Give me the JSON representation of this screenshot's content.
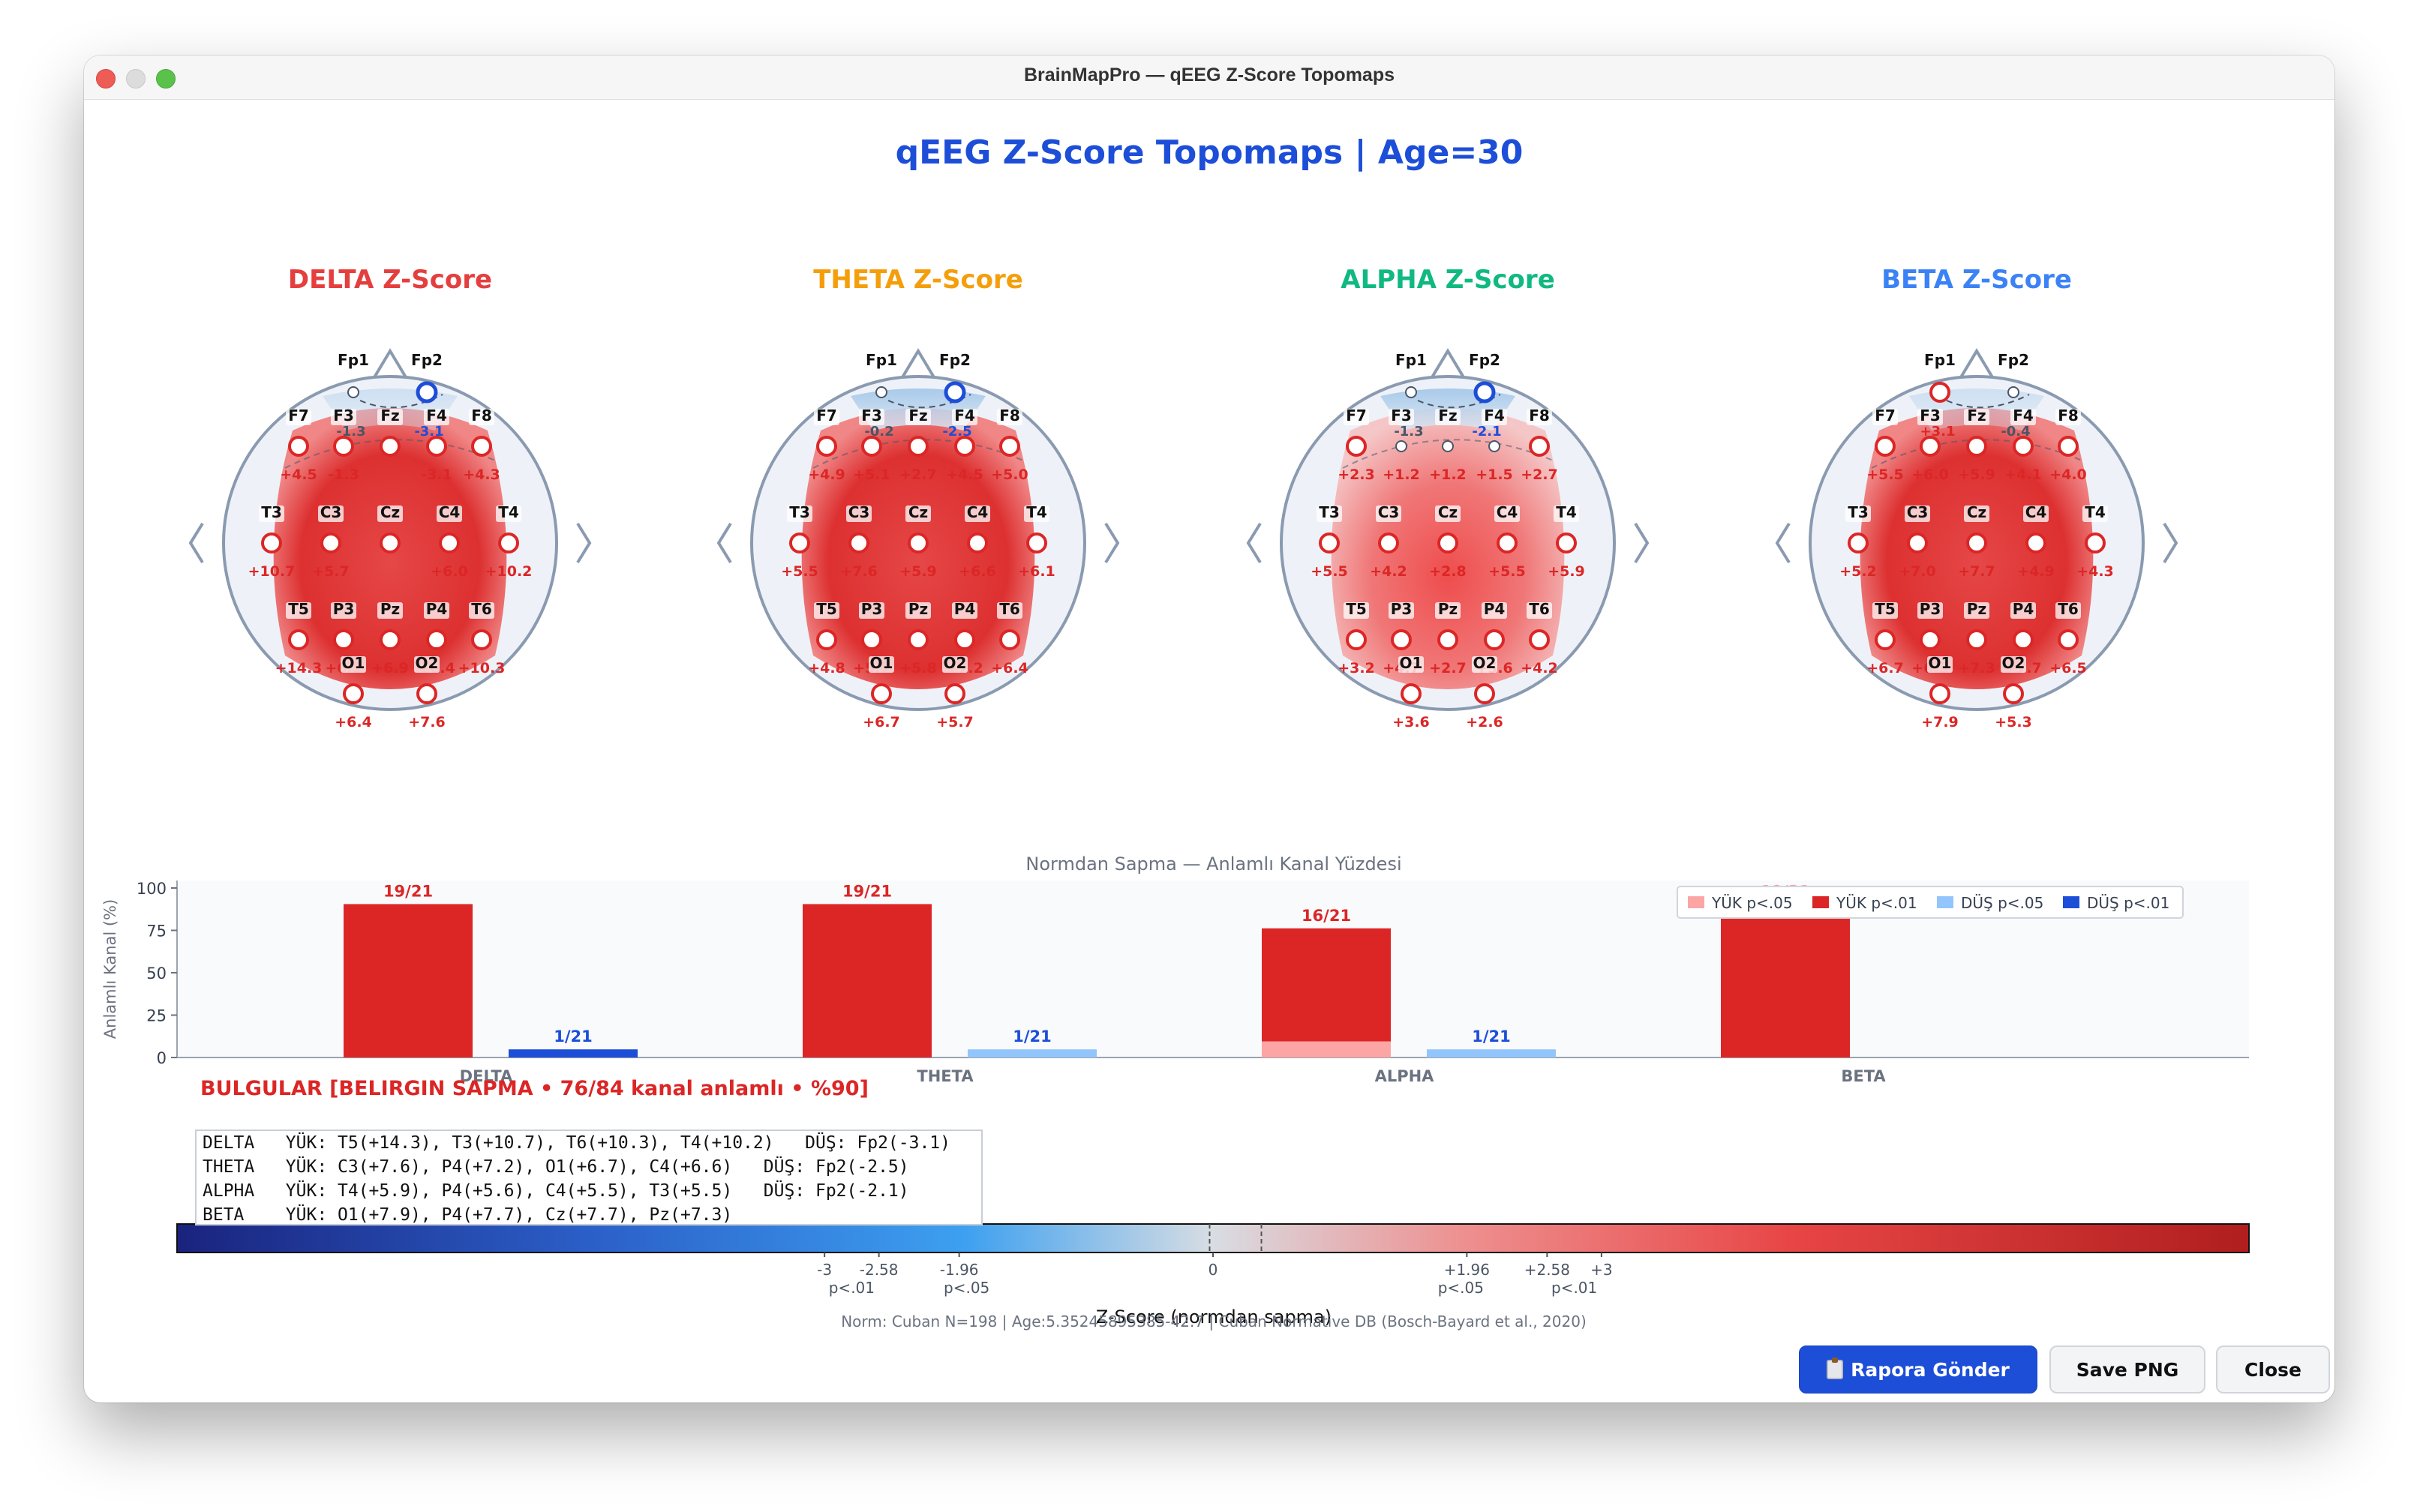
{
  "window": {
    "title": "BrainMapPro — qEEG Z-Score Topomaps"
  },
  "main_title": "qEEG Z-Score Topomaps  |  Age=30",
  "colors": {
    "accent": "#1d4ed8",
    "high": "#dc2626",
    "low": "#1d4ed8",
    "delta": "#e53e3e",
    "theta": "#f59e0b",
    "alpha": "#10b981",
    "beta": "#3b82f6"
  },
  "nav": {
    "prev_icon": "chevron-left-icon",
    "next_icon": "chevron-right-icon"
  },
  "electrodes": [
    "Fp1",
    "Fp2",
    "F7",
    "F3",
    "Fz",
    "F4",
    "F8",
    "T3",
    "C3",
    "Cz",
    "C4",
    "T4",
    "T5",
    "P3",
    "Pz",
    "P4",
    "T6",
    "O1",
    "O2"
  ],
  "maps": [
    {
      "title": "DELTA Z-Score",
      "color": "#e53e3e",
      "values": {
        "F7": "+4.5",
        "F8": "+4.3",
        "F3": "-1.3",
        "F4": "-3.1",
        "T3": "+10.7",
        "C3": "+5.7",
        "C4": "+6.0",
        "T4": "+10.2",
        "T5": "+14.3",
        "P3": "+6.1",
        "Pz": "+6.9",
        "P4": "+6.4",
        "T6": "+10.3",
        "O1": "+6.4",
        "O2": "+7.6"
      }
    },
    {
      "title": "THETA Z-Score",
      "color": "#f59e0b",
      "values": {
        "F7": "+4.9",
        "F3": "+5.1",
        "Fz": "+2.7",
        "F4": "+4.5",
        "F8": "+5.0",
        "T3": "+5.5",
        "C3": "+7.6",
        "Cz": "+5.9",
        "C4": "+6.6",
        "T4": "+6.1",
        "T5": "+4.8",
        "P3": "+5.7",
        "Pz": "+5.8",
        "P4": "+7.2",
        "T6": "+6.4",
        "O1": "+6.7",
        "O2": "+5.7",
        "F3n": "-0.2",
        "F4n": "-2.5"
      }
    },
    {
      "title": "ALPHA Z-Score",
      "color": "#10b981",
      "values": {
        "F7": "+2.3",
        "F3": "+1.2",
        "Fz": "+1.2",
        "F4": "+1.5",
        "F8": "+2.7",
        "T3": "+5.5",
        "C3": "+4.2",
        "Cz": "+2.8",
        "C4": "+5.5",
        "T4": "+5.9",
        "T5": "+3.2",
        "P3": "+4.7",
        "Pz": "+2.7",
        "P4": "+5.6",
        "T6": "+4.2",
        "O1": "+3.6",
        "O2": "+2.6",
        "F3n": "-1.3",
        "F4n": "-2.1"
      }
    },
    {
      "title": "BETA Z-Score",
      "color": "#3b82f6",
      "values": {
        "F7": "+5.5",
        "F3": "+6.0",
        "Fz": "+5.9",
        "F4": "+4.1",
        "F8": "+4.0",
        "T3": "+5.2",
        "C3": "+7.0",
        "Cz": "+7.7",
        "C4": "+4.9",
        "T4": "+4.3",
        "T5": "+6.7",
        "P3": "+6.3",
        "Pz": "+7.3",
        "P4": "+7.7",
        "T6": "+6.5",
        "O1": "+7.9",
        "O2": "+5.3",
        "F3n": "+3.1",
        "F4n": "-0.4"
      }
    }
  ],
  "chart_data": {
    "type": "bar",
    "title": "Normdan Sapma — Anlamlı Kanal Yüzdesi",
    "ylabel": "Anlamlı Kanal (%)",
    "xlabel": "",
    "ylim": [
      0,
      100
    ],
    "yticks": [
      "0",
      "25",
      "50",
      "75",
      "100"
    ],
    "categories": [
      "DELTA",
      "THETA",
      "ALPHA",
      "BETA"
    ],
    "series": [
      {
        "name": "YÜK p<.05",
        "color": "#fca5a5",
        "values": [
          0,
          0,
          9.5,
          0
        ]
      },
      {
        "name": "YÜK p<.01",
        "color": "#dc2626",
        "values": [
          90.5,
          90.5,
          66.7,
          90.5
        ]
      },
      {
        "name": "DÜŞ p<.05",
        "color": "#93c5fd",
        "values": [
          0,
          4.8,
          4.8,
          0
        ]
      },
      {
        "name": "DÜŞ p<.01",
        "color": "#1d4ed8",
        "values": [
          4.8,
          0,
          0,
          0
        ]
      }
    ],
    "high_labels": [
      "19/21",
      "19/21",
      "16/21",
      "19/21"
    ],
    "low_labels": [
      "1/21",
      "1/21",
      "1/21",
      ""
    ],
    "legend_position": "top-right"
  },
  "findings": {
    "title": "BULGULAR [BELIRGIN SAPMA  •  76/84 kanal anlamlı  •  %90]",
    "lines": [
      "DELTA   YÜK: T5(+14.3), T3(+10.7), T6(+10.3), T4(+10.2)   DÜŞ: Fp2(-3.1)",
      "THETA   YÜK: C3(+7.6), P4(+7.2), O1(+6.7), C4(+6.6)   DÜŞ: Fp2(-2.5)",
      "ALPHA   YÜK: T4(+5.9), P4(+5.6), C4(+5.5), T3(+5.5)   DÜŞ: Fp2(-2.1)",
      "BETA    YÜK: O1(+7.9), P4(+7.7), Cz(+7.7), Pz(+7.3)"
    ]
  },
  "colorbar": {
    "ticks": [
      "-3",
      "-2.58",
      "-1.96",
      "0",
      "+1.96",
      "+2.58",
      "+3"
    ],
    "sig_labels": [
      "p<.01",
      "p<.05",
      "p<.05",
      "p<.01"
    ],
    "label": "Z-Score (normdan sapma)",
    "norm_note": "Norm: Cuban N=198 | Age:5.35245895385-42.7 | Cuban Normative DB (Bosch-Bayard et al., 2020)"
  },
  "buttons": {
    "send_report": "Rapora Gönder",
    "save_png": "Save PNG",
    "close": "Close"
  }
}
